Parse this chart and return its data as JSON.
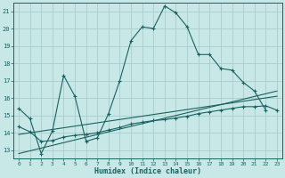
{
  "xlabel": "Humidex (Indice chaleur)",
  "background_color": "#c8e8e8",
  "grid_color": "#a8cccc",
  "line_color": "#1a6060",
  "xlim": [
    -0.5,
    23.5
  ],
  "ylim": [
    12.5,
    21.5
  ],
  "yticks": [
    13,
    14,
    15,
    16,
    17,
    18,
    19,
    20,
    21
  ],
  "xticks": [
    0,
    1,
    2,
    3,
    4,
    5,
    6,
    7,
    8,
    9,
    10,
    11,
    12,
    13,
    14,
    15,
    16,
    17,
    18,
    19,
    20,
    21,
    22,
    23
  ],
  "series1_x": [
    0,
    1,
    2,
    3,
    4,
    5,
    6,
    7,
    8,
    9,
    10,
    11,
    12,
    13,
    14,
    15,
    16,
    17,
    18,
    19,
    20,
    21,
    22
  ],
  "series1_y": [
    15.4,
    14.8,
    12.8,
    14.1,
    17.3,
    16.1,
    13.5,
    13.7,
    15.1,
    17.0,
    19.3,
    20.1,
    20.0,
    21.3,
    20.9,
    20.1,
    18.5,
    18.5,
    17.7,
    17.6,
    16.9,
    16.4,
    15.3
  ],
  "series2_x": [
    0,
    1,
    2,
    3,
    4,
    5,
    6,
    7,
    8,
    9,
    10,
    11,
    12,
    13,
    14,
    15,
    16,
    17,
    18,
    19,
    20,
    21,
    22,
    23
  ],
  "series2_y": [
    14.35,
    14.05,
    13.5,
    13.55,
    13.75,
    13.85,
    13.9,
    14.0,
    14.15,
    14.3,
    14.5,
    14.6,
    14.7,
    14.75,
    14.85,
    14.95,
    15.1,
    15.2,
    15.3,
    15.4,
    15.5,
    15.5,
    15.55,
    15.3
  ],
  "series3_x": [
    0,
    23
  ],
  "series3_y": [
    12.8,
    16.4
  ],
  "series4_x": [
    0,
    23
  ],
  "series4_y": [
    13.9,
    16.1
  ]
}
